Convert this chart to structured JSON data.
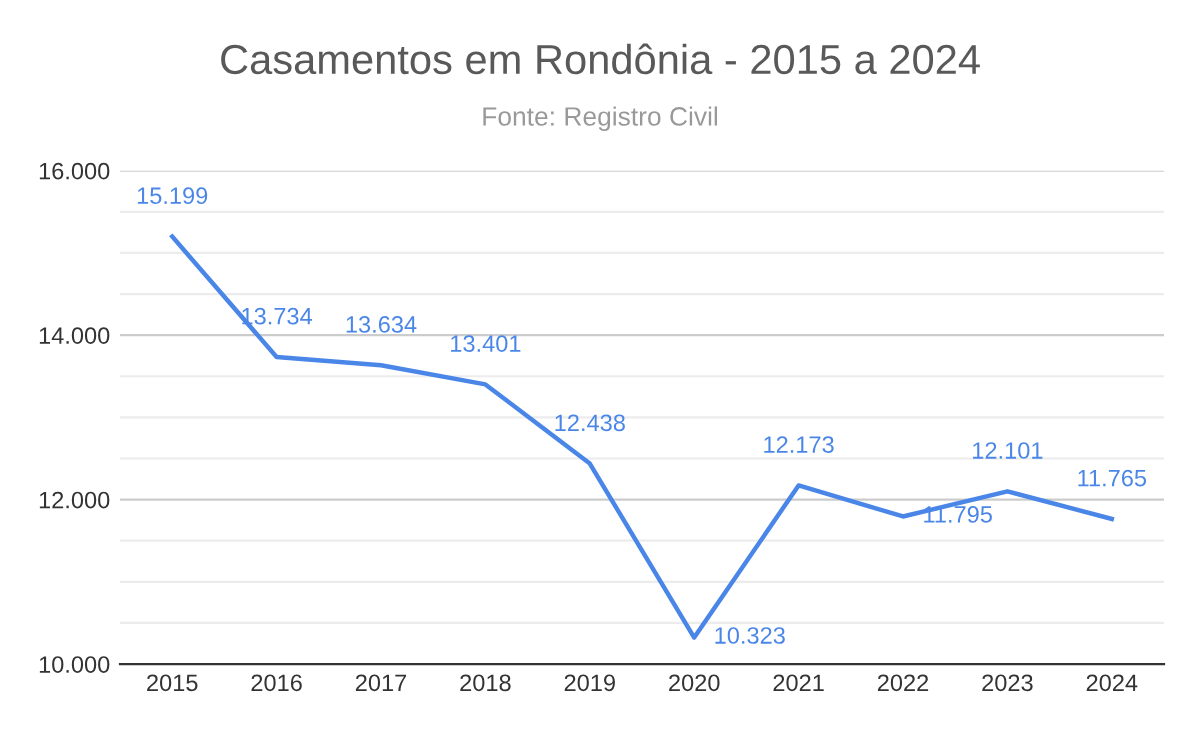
{
  "chart_data": {
    "type": "line",
    "title": "Casamentos em Rondônia - 2015 a 2024",
    "subtitle": "Fonte: Registro Civil",
    "categories": [
      "2015",
      "2016",
      "2017",
      "2018",
      "2019",
      "2020",
      "2021",
      "2022",
      "2023",
      "2024"
    ],
    "series": [
      {
        "color": "#4a86e8",
        "values": [
          15199,
          13734,
          13634,
          13401,
          12438,
          10323,
          12173,
          11795,
          12101,
          11765
        ],
        "value_labels": [
          "15.199",
          "13.734",
          "13.634",
          "13.401",
          "12.438",
          "10.323",
          "12.173",
          "11.795",
          "12.101",
          "11.765"
        ]
      }
    ],
    "ylim": [
      10000,
      16000
    ],
    "yticks": [
      {
        "value": 10000,
        "label": "10.000"
      },
      {
        "value": 10500,
        "label": null
      },
      {
        "value": 11000,
        "label": null
      },
      {
        "value": 11500,
        "label": null
      },
      {
        "value": 12000,
        "label": "12.000"
      },
      {
        "value": 12500,
        "label": null
      },
      {
        "value": 13000,
        "label": null
      },
      {
        "value": 13500,
        "label": null
      },
      {
        "value": 14000,
        "label": "14.000"
      },
      {
        "value": 14500,
        "label": null
      },
      {
        "value": 15000,
        "label": null
      },
      {
        "value": 15500,
        "label": null
      },
      {
        "value": 16000,
        "label": "16.000"
      }
    ],
    "grid": "y",
    "legend": false,
    "marker": "none",
    "line_style": "solid"
  }
}
